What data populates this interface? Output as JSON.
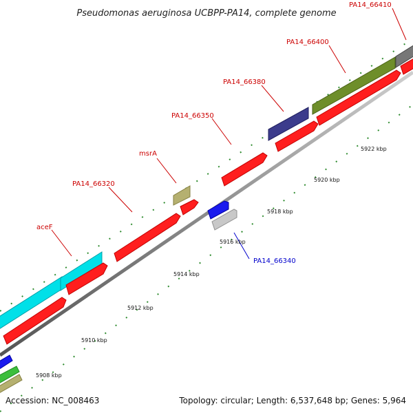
{
  "title": "Pseudomonas aeruginosa UCBPP-PA14, complete genome",
  "footer": {
    "accession": "Accession: NC_008463",
    "summary": "Topology: circular; Length: 6,537,648 bp; Genes: 5,964"
  },
  "colors": {
    "backbone": "#999999",
    "tick_minor": "#2e8b2e",
    "label_red": "#cc0000",
    "label_blue": "#0000cc"
  },
  "tick_labels": [
    "5908 kbp",
    "5910 kbp",
    "5912 kbp",
    "5914 kbp",
    "5916 kbp",
    "5918 kbp",
    "5920 kbp",
    "5922 kbp"
  ],
  "gene_labels": [
    {
      "text": "aceF",
      "color": "#cc0000"
    },
    {
      "text": "PA14_66320",
      "color": "#cc0000"
    },
    {
      "text": "msrA",
      "color": "#cc0000"
    },
    {
      "text": "PA14_66350",
      "color": "#cc0000"
    },
    {
      "text": "PA14_66380",
      "color": "#cc0000"
    },
    {
      "text": "PA14_66400",
      "color": "#cc0000"
    },
    {
      "text": "PA14_66410",
      "color": "#cc0000"
    },
    {
      "text": "PA14_66340",
      "color": "#0000cc"
    }
  ]
}
